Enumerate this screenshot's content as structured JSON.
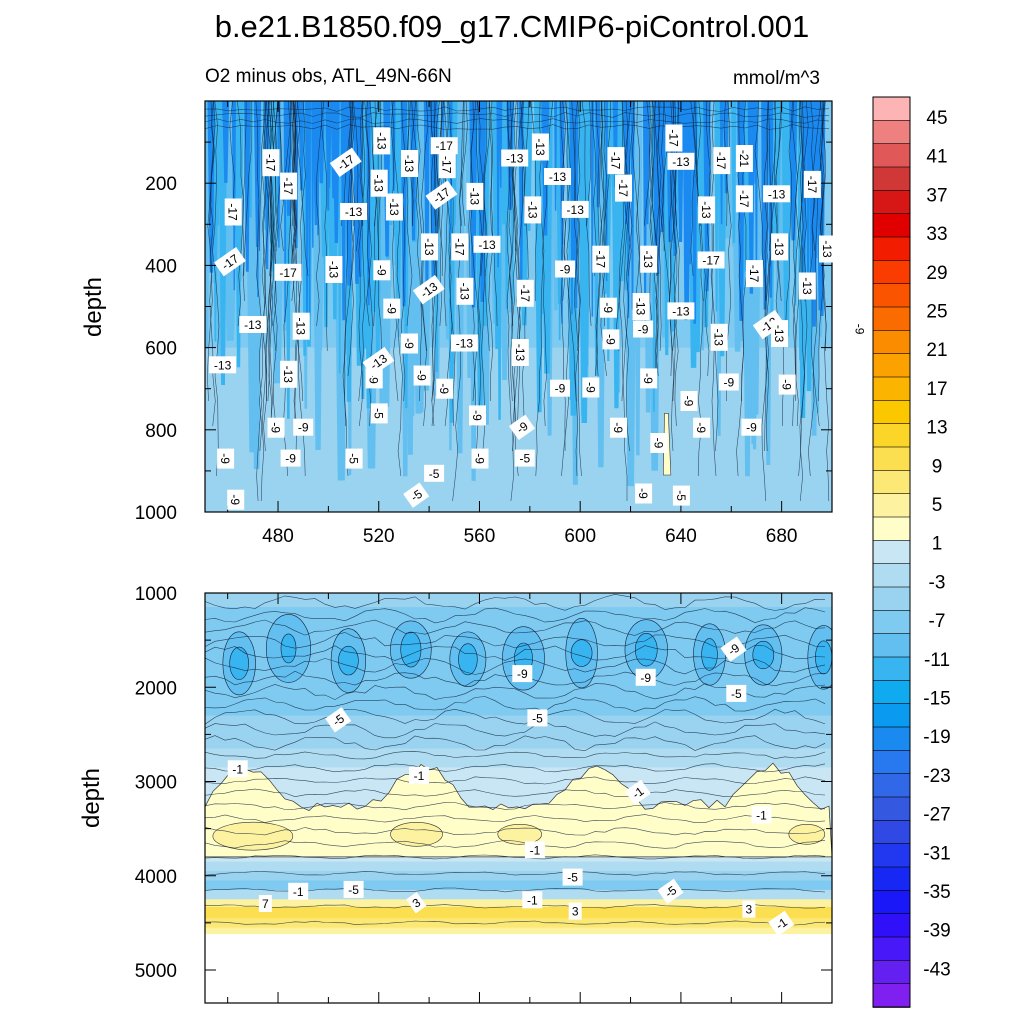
{
  "chart_data": [
    {
      "type": "heatmap",
      "title": "b.e21.B1850.f09_g17.CMIP6-piControl.001",
      "subtitle": "O2 minus obs, ATL_49N-66N",
      "units": "mmol/m^3",
      "ylabel": "depth",
      "xlabel": "",
      "xlim": [
        451,
        700
      ],
      "ylim": [
        1000,
        0
      ],
      "y_reversed": true,
      "xticks": [
        480,
        520,
        560,
        600,
        640,
        680
      ],
      "yticks": [
        200,
        400,
        600,
        800,
        1000
      ],
      "contour_labels": [
        {
          "x": 521,
          "y": 97,
          "v": "-13"
        },
        {
          "x": 546,
          "y": 110,
          "v": "-17"
        },
        {
          "x": 637,
          "y": 90,
          "v": "-17"
        },
        {
          "x": 477,
          "y": 150,
          "v": "-17"
        },
        {
          "x": 507,
          "y": 150,
          "v": "-17"
        },
        {
          "x": 532,
          "y": 152,
          "v": "-13"
        },
        {
          "x": 547,
          "y": 155,
          "v": "-17"
        },
        {
          "x": 574,
          "y": 140,
          "v": "-13"
        },
        {
          "x": 584,
          "y": 112,
          "v": "-13"
        },
        {
          "x": 614,
          "y": 145,
          "v": "-17"
        },
        {
          "x": 640,
          "y": 148,
          "v": "-13"
        },
        {
          "x": 656,
          "y": 145,
          "v": "-17"
        },
        {
          "x": 665,
          "y": 140,
          "v": "-21"
        },
        {
          "x": 591,
          "y": 185,
          "v": "-13"
        },
        {
          "x": 484,
          "y": 207,
          "v": "-17"
        },
        {
          "x": 520,
          "y": 200,
          "v": "-13"
        },
        {
          "x": 545,
          "y": 230,
          "v": "-17"
        },
        {
          "x": 558,
          "y": 232,
          "v": "-13"
        },
        {
          "x": 617,
          "y": 212,
          "v": "-17"
        },
        {
          "x": 678,
          "y": 227,
          "v": "-13"
        },
        {
          "x": 692,
          "y": 203,
          "v": "-17"
        },
        {
          "x": 462,
          "y": 270,
          "v": "-17"
        },
        {
          "x": 510,
          "y": 270,
          "v": "-13"
        },
        {
          "x": 526,
          "y": 258,
          "v": "-13"
        },
        {
          "x": 581,
          "y": 265,
          "v": "-13"
        },
        {
          "x": 598,
          "y": 265,
          "v": "-13"
        },
        {
          "x": 650,
          "y": 265,
          "v": "-13"
        },
        {
          "x": 665,
          "y": 238,
          "v": "-17"
        },
        {
          "x": 461,
          "y": 392,
          "v": "-17"
        },
        {
          "x": 540,
          "y": 355,
          "v": "-13"
        },
        {
          "x": 552,
          "y": 355,
          "v": "-17"
        },
        {
          "x": 563,
          "y": 350,
          "v": "-13"
        },
        {
          "x": 608,
          "y": 385,
          "v": "-17"
        },
        {
          "x": 627,
          "y": 385,
          "v": "-13"
        },
        {
          "x": 652,
          "y": 388,
          "v": "-17"
        },
        {
          "x": 679,
          "y": 355,
          "v": "-13"
        },
        {
          "x": 698,
          "y": 360,
          "v": "-13"
        },
        {
          "x": 484,
          "y": 418,
          "v": "-17"
        },
        {
          "x": 502,
          "y": 410,
          "v": "-13"
        },
        {
          "x": 521,
          "y": 412,
          "v": "-9"
        },
        {
          "x": 540,
          "y": 460,
          "v": "-13"
        },
        {
          "x": 554,
          "y": 463,
          "v": "-13"
        },
        {
          "x": 578,
          "y": 468,
          "v": "-17"
        },
        {
          "x": 594,
          "y": 410,
          "v": "-9"
        },
        {
          "x": 611,
          "y": 503,
          "v": "-9"
        },
        {
          "x": 624,
          "y": 500,
          "v": "-13"
        },
        {
          "x": 640,
          "y": 512,
          "v": "-13"
        },
        {
          "x": 669,
          "y": 420,
          "v": "-17"
        },
        {
          "x": 690,
          "y": 450,
          "v": "-13"
        },
        {
          "x": 470,
          "y": 545,
          "v": "-13"
        },
        {
          "x": 489,
          "y": 548,
          "v": "-13"
        },
        {
          "x": 525,
          "y": 505,
          "v": "-9"
        },
        {
          "x": 675,
          "y": 545,
          "v": "-13"
        },
        {
          "x": 711,
          "y": 555,
          "v": "-9"
        },
        {
          "x": 532,
          "y": 590,
          "v": "-9"
        },
        {
          "x": 554,
          "y": 590,
          "v": "-13"
        },
        {
          "x": 576,
          "y": 612,
          "v": "-13"
        },
        {
          "x": 612,
          "y": 580,
          "v": "-9"
        },
        {
          "x": 625,
          "y": 556,
          "v": "-9"
        },
        {
          "x": 655,
          "y": 575,
          "v": "-13"
        },
        {
          "x": 679,
          "y": 566,
          "v": "-13"
        },
        {
          "x": 458,
          "y": 643,
          "v": "-13"
        },
        {
          "x": 484,
          "y": 665,
          "v": "-13"
        },
        {
          "x": 518,
          "y": 675,
          "v": "-9"
        },
        {
          "x": 520,
          "y": 635,
          "v": "-13"
        },
        {
          "x": 537,
          "y": 668,
          "v": "-9"
        },
        {
          "x": 546,
          "y": 700,
          "v": "-9"
        },
        {
          "x": 592,
          "y": 700,
          "v": "-9"
        },
        {
          "x": 604,
          "y": 697,
          "v": "-9"
        },
        {
          "x": 627,
          "y": 675,
          "v": "-9"
        },
        {
          "x": 659,
          "y": 685,
          "v": "-9"
        },
        {
          "x": 682,
          "y": 690,
          "v": "-9"
        },
        {
          "x": 479,
          "y": 795,
          "v": "-9"
        },
        {
          "x": 490,
          "y": 795,
          "v": "-9"
        },
        {
          "x": 520,
          "y": 760,
          "v": "-5"
        },
        {
          "x": 559,
          "y": 765,
          "v": "-9"
        },
        {
          "x": 577,
          "y": 795,
          "v": "-9"
        },
        {
          "x": 615,
          "y": 795,
          "v": "-9"
        },
        {
          "x": 648,
          "y": 795,
          "v": "-9"
        },
        {
          "x": 668,
          "y": 795,
          "v": "-9"
        },
        {
          "x": 643,
          "y": 730,
          "v": "-9"
        },
        {
          "x": 459,
          "y": 870,
          "v": "-9"
        },
        {
          "x": 485,
          "y": 870,
          "v": "-9"
        },
        {
          "x": 510,
          "y": 870,
          "v": "-5"
        },
        {
          "x": 560,
          "y": 870,
          "v": "-9"
        },
        {
          "x": 578,
          "y": 870,
          "v": "-5"
        },
        {
          "x": 631,
          "y": 832,
          "v": "-9"
        },
        {
          "x": 463,
          "y": 970,
          "v": "-9"
        },
        {
          "x": 535,
          "y": 960,
          "v": "-5"
        },
        {
          "x": 625,
          "y": 955,
          "v": "-9"
        },
        {
          "x": 640,
          "y": 960,
          "v": "-5"
        },
        {
          "x": 542,
          "y": 907,
          "v": "-5"
        }
      ]
    },
    {
      "type": "heatmap",
      "ylabel": "depth",
      "xlabel": "",
      "xlim": [
        451,
        700
      ],
      "ylim": [
        5350,
        1000
      ],
      "y_reversed": true,
      "yticks": [
        1000,
        2000,
        3000,
        4000,
        5000
      ],
      "contour_labels": [
        {
          "x": 661,
          "y": 1600,
          "v": "-9"
        },
        {
          "x": 577,
          "y": 1860,
          "v": "-9"
        },
        {
          "x": 626,
          "y": 1900,
          "v": "-9"
        },
        {
          "x": 662,
          "y": 2070,
          "v": "-5"
        },
        {
          "x": 504,
          "y": 2350,
          "v": "-5"
        },
        {
          "x": 583,
          "y": 2330,
          "v": "-5"
        },
        {
          "x": 464,
          "y": 2870,
          "v": "-1"
        },
        {
          "x": 536,
          "y": 2940,
          "v": "-1"
        },
        {
          "x": 623,
          "y": 3120,
          "v": "-1"
        },
        {
          "x": 672,
          "y": 3360,
          "v": "-1"
        },
        {
          "x": 582,
          "y": 3730,
          "v": "-1"
        },
        {
          "x": 597,
          "y": 4020,
          "v": "-5"
        },
        {
          "x": 636,
          "y": 4170,
          "v": "-5"
        },
        {
          "x": 488,
          "y": 4170,
          "v": "-1"
        },
        {
          "x": 510,
          "y": 4150,
          "v": "-5"
        },
        {
          "x": 475,
          "y": 4300,
          "v": "7"
        },
        {
          "x": 535,
          "y": 4290,
          "v": "3"
        },
        {
          "x": 581,
          "y": 4260,
          "v": "-1"
        },
        {
          "x": 598,
          "y": 4380,
          "v": "3"
        },
        {
          "x": 667,
          "y": 4360,
          "v": "3"
        },
        {
          "x": 680,
          "y": 4510,
          "v": "-1"
        }
      ]
    }
  ],
  "colorbar": {
    "units": "mmol/m^3",
    "tick_labels": [
      "45",
      "41",
      "37",
      "33",
      "29",
      "25",
      "21",
      "17",
      "13",
      "9",
      "5",
      "1",
      "-3",
      "-7",
      "-11",
      "-15",
      "-19",
      "-23",
      "-27",
      "-31",
      "-35",
      "-39",
      "-43"
    ],
    "colors": [
      "#fdb4b4",
      "#ef8080",
      "#e05858",
      "#d03838",
      "#d71616",
      "#e00000",
      "#f21c00",
      "#fb3c00",
      "#fb5400",
      "#fb6c00",
      "#fb8c00",
      "#fba200",
      "#fbb400",
      "#fbc800",
      "#fbd528",
      "#fbdf50",
      "#fbe875",
      "#fdf2a0",
      "#fffdc8",
      "#c8e6f4",
      "#afdcf0",
      "#9ad3f0",
      "#7ecaf0",
      "#62bff0",
      "#38b4f0",
      "#10aaf0",
      "#0a9af0",
      "#1a8af0",
      "#2878f0",
      "#3068e8",
      "#3458e0",
      "#3048e4",
      "#2238f0",
      "#1828f4",
      "#1a18f8",
      "#3010f8",
      "#4818f8",
      "#6420f0",
      "#8020f0"
    ]
  }
}
